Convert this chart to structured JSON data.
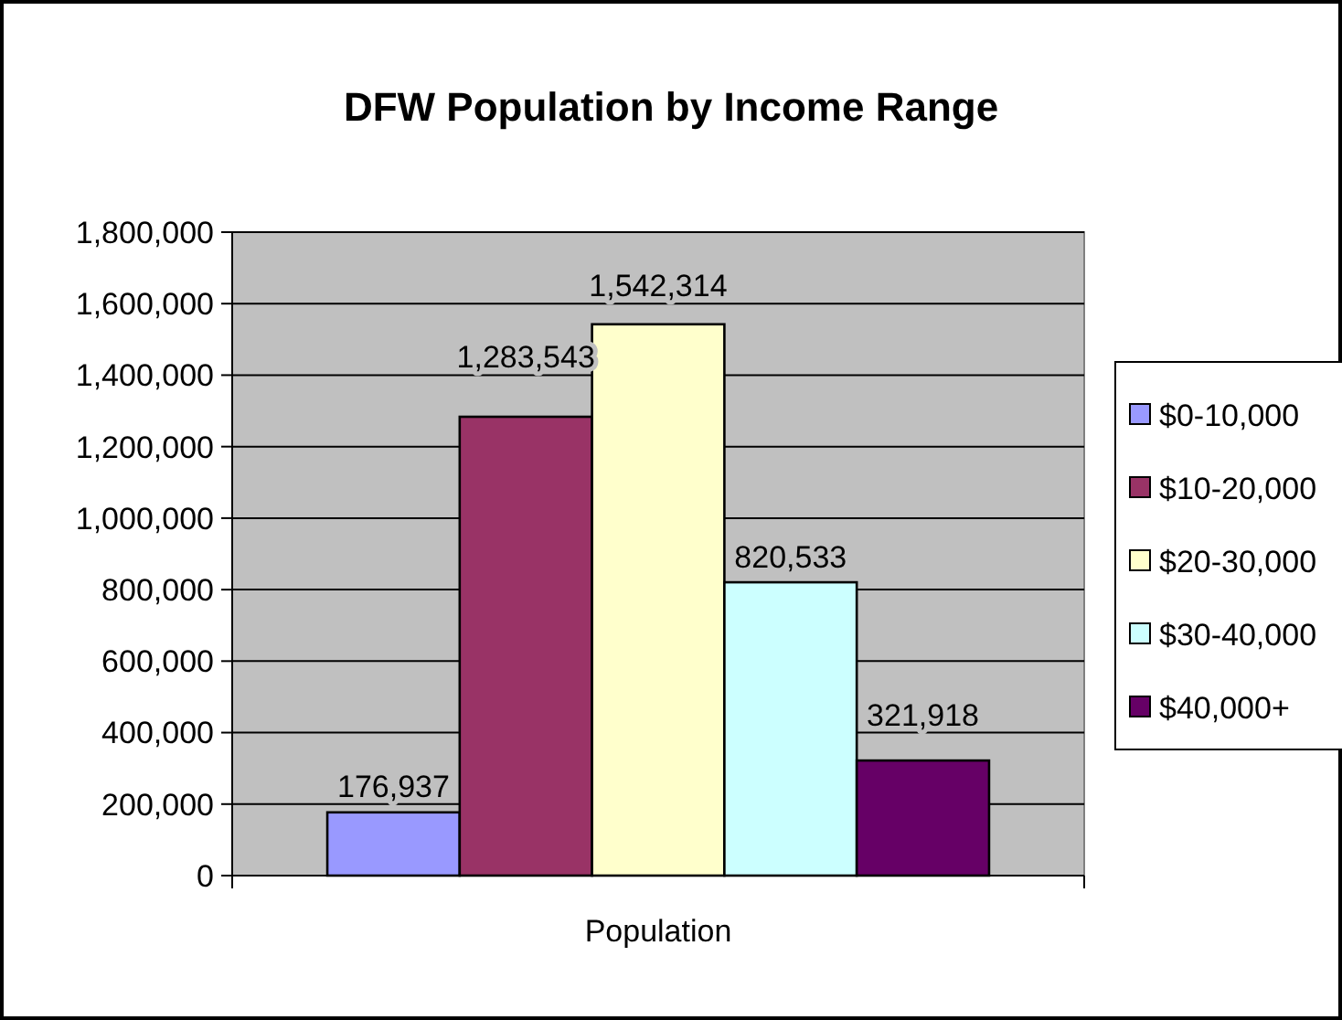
{
  "chart_data": {
    "type": "bar",
    "title": "DFW Population by Income Range",
    "categories": [
      "Population"
    ],
    "series": [
      {
        "name": "$0-10,000",
        "color": "#9999ff",
        "values": [
          176937
        ],
        "value_labels": [
          "176,937"
        ]
      },
      {
        "name": "$10-20,000",
        "color": "#993366",
        "values": [
          1283543
        ],
        "value_labels": [
          "1,283,543"
        ]
      },
      {
        "name": "$20-30,000",
        "color": "#ffffcc",
        "values": [
          1542314
        ],
        "value_labels": [
          "1,542,314"
        ]
      },
      {
        "name": "$30-40,000",
        "color": "#ccffff",
        "values": [
          820533
        ],
        "value_labels": [
          "820,533"
        ]
      },
      {
        "name": "$40,000+",
        "color": "#660066",
        "values": [
          321918
        ],
        "value_labels": [
          "321,918"
        ]
      }
    ],
    "ylim": [
      0,
      1800000
    ],
    "yticks": [
      {
        "value": 0,
        "label": "0"
      },
      {
        "value": 200000,
        "label": "200,000"
      },
      {
        "value": 400000,
        "label": "400,000"
      },
      {
        "value": 600000,
        "label": "600,000"
      },
      {
        "value": 800000,
        "label": "800,000"
      },
      {
        "value": 1000000,
        "label": "1,000,000"
      },
      {
        "value": 1200000,
        "label": "1,200,000"
      },
      {
        "value": 1400000,
        "label": "1,400,000"
      },
      {
        "value": 1600000,
        "label": "1,600,000"
      },
      {
        "value": 1800000,
        "label": "1,800,000"
      }
    ],
    "grid": "y",
    "legend": "right",
    "data_labels": true
  }
}
